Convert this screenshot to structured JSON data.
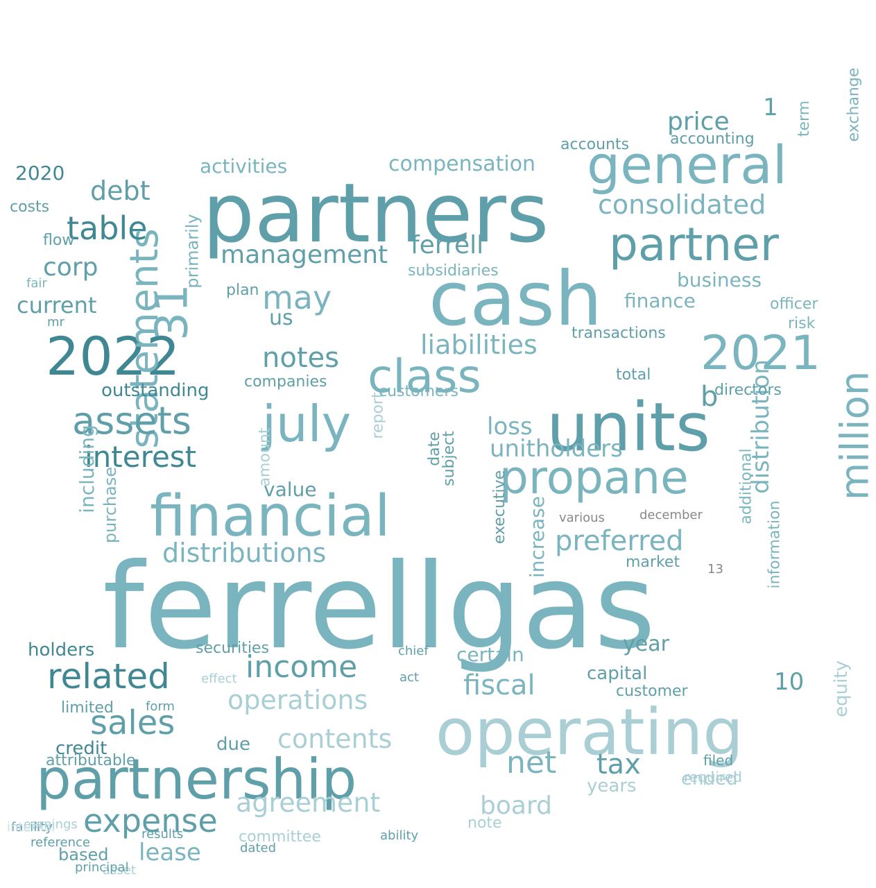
{
  "palette": {
    "dark": "#3f8893",
    "mid": "#5e9fa9",
    "teal": "#7ab5bf",
    "light": "#a9cfd5",
    "pale": "#c9e1e5",
    "grey": "#888888"
  },
  "words": [
    {
      "text": "ferrellgas",
      "c": "teal"
    },
    {
      "text": "partners",
      "c": "mid"
    },
    {
      "text": "cash",
      "c": "teal"
    },
    {
      "text": "units",
      "c": "mid"
    },
    {
      "text": "operating",
      "c": "light"
    },
    {
      "text": "financial",
      "c": "teal"
    },
    {
      "text": "partnership",
      "c": "mid"
    },
    {
      "text": "general",
      "c": "teal"
    },
    {
      "text": "2022",
      "c": "dark"
    },
    {
      "text": "2021",
      "c": "teal"
    },
    {
      "text": "class",
      "c": "teal"
    },
    {
      "text": "propane",
      "c": "teal"
    },
    {
      "text": "partner",
      "c": "mid"
    },
    {
      "text": "july",
      "c": "teal"
    },
    {
      "text": "million",
      "c": "teal"
    },
    {
      "text": "statements",
      "c": "teal"
    },
    {
      "text": "31",
      "c": "teal"
    },
    {
      "text": "assets",
      "c": "mid"
    },
    {
      "text": "related",
      "c": "dark"
    },
    {
      "text": "sales",
      "c": "mid"
    },
    {
      "text": "expense",
      "c": "mid"
    },
    {
      "text": "income",
      "c": "mid"
    },
    {
      "text": "table",
      "c": "dark"
    },
    {
      "text": "interest",
      "c": "dark"
    },
    {
      "text": "consolidated",
      "c": "teal"
    },
    {
      "text": "liabilities",
      "c": "teal"
    },
    {
      "text": "distributions",
      "c": "teal"
    },
    {
      "text": "preferred",
      "c": "teal"
    },
    {
      "text": "net",
      "c": "teal"
    },
    {
      "text": "fiscal",
      "c": "teal"
    },
    {
      "text": "operations",
      "c": "light"
    },
    {
      "text": "contents",
      "c": "light"
    },
    {
      "text": "agreement",
      "c": "light"
    },
    {
      "text": "management",
      "c": "mid"
    },
    {
      "text": "unitholders",
      "c": "teal"
    },
    {
      "text": "distribution",
      "c": "teal"
    },
    {
      "text": "debt",
      "c": "mid"
    },
    {
      "text": "may",
      "c": "teal"
    },
    {
      "text": "ferrell",
      "c": "mid"
    },
    {
      "text": "notes",
      "c": "mid"
    },
    {
      "text": "tax",
      "c": "mid"
    },
    {
      "text": "board",
      "c": "light"
    },
    {
      "text": "lease",
      "c": "teal"
    },
    {
      "text": "price",
      "c": "mid"
    },
    {
      "text": "compensation",
      "c": "teal"
    },
    {
      "text": "business",
      "c": "teal"
    },
    {
      "text": "finance",
      "c": "teal"
    },
    {
      "text": "corp",
      "c": "mid"
    },
    {
      "text": "current",
      "c": "mid"
    },
    {
      "text": "activities",
      "c": "teal"
    },
    {
      "text": "value",
      "c": "mid"
    },
    {
      "text": "certain",
      "c": "teal"
    },
    {
      "text": "loss",
      "c": "teal"
    },
    {
      "text": "us",
      "c": "mid"
    },
    {
      "text": "b",
      "c": "mid"
    },
    {
      "text": "1",
      "c": "mid"
    },
    {
      "text": "10",
      "c": "mid"
    },
    {
      "text": "equity",
      "c": "light"
    },
    {
      "text": "year",
      "c": "mid"
    },
    {
      "text": "capital",
      "c": "mid"
    },
    {
      "text": "holders",
      "c": "dark"
    },
    {
      "text": "credit",
      "c": "dark"
    },
    {
      "text": "due",
      "c": "mid"
    },
    {
      "text": "amount",
      "c": "light"
    },
    {
      "text": "including",
      "c": "teal"
    },
    {
      "text": "outstanding",
      "c": "dark"
    },
    {
      "text": "2020",
      "c": "dark"
    },
    {
      "text": "costs",
      "c": "mid"
    },
    {
      "text": "limited",
      "c": "mid"
    },
    {
      "text": "based",
      "c": "mid"
    },
    {
      "text": "flow",
      "c": "mid"
    },
    {
      "text": "years",
      "c": "light"
    },
    {
      "text": "ended",
      "c": "light"
    },
    {
      "text": "committee",
      "c": "light"
    },
    {
      "text": "increase",
      "c": "teal"
    },
    {
      "text": "securities",
      "c": "mid"
    },
    {
      "text": "companies",
      "c": "mid"
    },
    {
      "text": "report",
      "c": "light"
    },
    {
      "text": "accounting",
      "c": "mid"
    },
    {
      "text": "accounts",
      "c": "mid"
    },
    {
      "text": "risk",
      "c": "teal"
    },
    {
      "text": "directors",
      "c": "mid"
    },
    {
      "text": "primarily",
      "c": "teal"
    },
    {
      "text": "purchase",
      "c": "teal"
    },
    {
      "text": "executive",
      "c": "mid"
    },
    {
      "text": "market",
      "c": "mid"
    },
    {
      "text": "term",
      "c": "teal"
    },
    {
      "text": "exchange",
      "c": "teal"
    },
    {
      "text": "officer",
      "c": "teal"
    },
    {
      "text": "total",
      "c": "mid"
    },
    {
      "text": "customers",
      "c": "teal"
    },
    {
      "text": "subsidiaries",
      "c": "teal"
    },
    {
      "text": "filed",
      "c": "mid"
    },
    {
      "text": "note",
      "c": "light"
    },
    {
      "text": "required",
      "c": "light"
    },
    {
      "text": "information",
      "c": "teal"
    },
    {
      "text": "additional",
      "c": "teal"
    },
    {
      "text": "customer",
      "c": "mid"
    },
    {
      "text": "attributable",
      "c": "mid"
    },
    {
      "text": "transactions",
      "c": "mid"
    },
    {
      "text": "earnings",
      "c": "light"
    },
    {
      "text": "facility",
      "c": "mid"
    },
    {
      "text": "results",
      "c": "mid"
    },
    {
      "text": "reference",
      "c": "mid"
    },
    {
      "text": "form",
      "c": "mid"
    },
    {
      "text": "fair",
      "c": "teal"
    },
    {
      "text": "mr",
      "c": "mid"
    },
    {
      "text": "plan",
      "c": "mid"
    },
    {
      "text": "date",
      "c": "mid"
    },
    {
      "text": "subject",
      "c": "mid"
    },
    {
      "text": "effect",
      "c": "light"
    },
    {
      "text": "chief",
      "c": "mid"
    },
    {
      "text": "act",
      "c": "mid"
    },
    {
      "text": "internal",
      "c": "pale"
    },
    {
      "text": "asset",
      "c": "light"
    },
    {
      "text": "principal",
      "c": "mid"
    },
    {
      "text": "ability",
      "c": "mid"
    },
    {
      "text": "dated",
      "c": "mid"
    },
    {
      "text": "december",
      "c": "grey"
    },
    {
      "text": "various",
      "c": "grey"
    },
    {
      "text": "13",
      "c": "grey"
    }
  ]
}
